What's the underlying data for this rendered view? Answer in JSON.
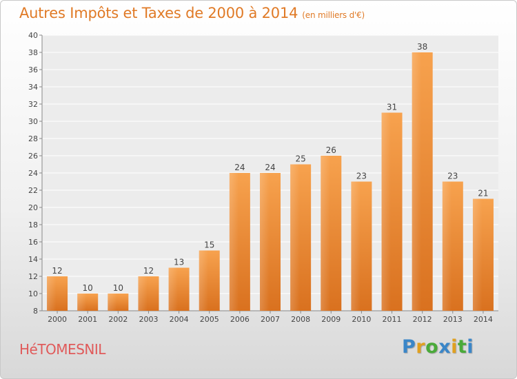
{
  "chart_data": {
    "type": "bar",
    "title": "Autres Impôts et Taxes de 2000 à 2014",
    "subtitle": "(en milliers d'€)",
    "categories": [
      "2000",
      "2001",
      "2002",
      "2003",
      "2004",
      "2005",
      "2006",
      "2007",
      "2008",
      "2009",
      "2010",
      "2011",
      "2012",
      "2013",
      "2014"
    ],
    "values": [
      12,
      10,
      10,
      12,
      13,
      15,
      24,
      24,
      25,
      26,
      23,
      31,
      38,
      23,
      21
    ],
    "ylim": [
      8,
      40
    ],
    "yticks": [
      8,
      10,
      12,
      14,
      16,
      18,
      20,
      22,
      24,
      26,
      28,
      30,
      32,
      34,
      36,
      38,
      40
    ],
    "xlabel": "",
    "ylabel": "",
    "grid": true,
    "bar_color": "#f0913a"
  },
  "commune": "HéTOMESNIL",
  "logo": {
    "letters": [
      "P",
      "r",
      "o",
      "x",
      "i",
      "t",
      "i"
    ],
    "colors": [
      "#3a86c8",
      "#e0a020",
      "#4aaa3a",
      "#3a86c8",
      "#e0a020",
      "#4aaa3a",
      "#3a86c8"
    ]
  }
}
